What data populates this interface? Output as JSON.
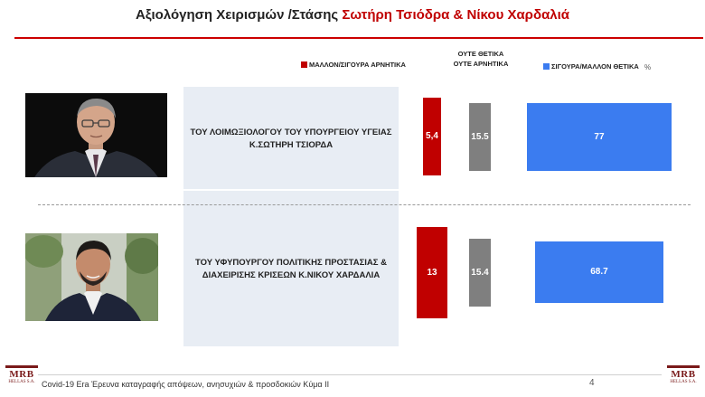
{
  "header": {
    "title_prefix": "Αξιολόγηση Χειρισμών /Στάσης ",
    "title_highlight": "Σωτήρη Τσιόδρα & Νίκου Χαρδαλιά"
  },
  "legend": {
    "negative": "ΜΑΛΛΟΝ/ΣΙΓΟΥΡΑ ΑΡΝΗΤΙΚΑ",
    "neutral_line1": "ΟΥΤΕ ΘΕΤΙΚΑ",
    "neutral_line2": "ΟΥΤΕ ΑΡΝΗΤΙΚΑ",
    "positive": "ΣΙΓΟΥΡΑ/ΜΑΛΛΟΝ ΘΕΤΙΚΑ",
    "unit": "%"
  },
  "rows": [
    {
      "label_line1": "ΤΟΥ ΛΟΙΜΩΞΙΟΛΟΓΟΥ ΤΟΥ ΥΠΟΥΡΓΕΙΟΥ ΥΓΕΙΑΣ",
      "label_line2": "Κ.ΣΩΤΗΡΗ ΤΣΙΟΡΔΑ"
    },
    {
      "label_line1": "ΤΟΥ ΥΦΥΠΟΥΡΓΟΥ ΠΟΛΙΤΙΚΗΣ ΠΡΟΣΤΑΣΙΑΣ &",
      "label_line2": "ΔΙΑΧΕΙΡΙΣΗΣ ΚΡΙΣΕΩΝ Κ.ΝΙΚΟΥ ΧΑΡΔΑΛΙΑ"
    }
  ],
  "chart_data": {
    "type": "bar",
    "categories": [
      "ΤΟΥ ΛΟΙΜΩΞΙΟΛΟΓΟΥ ΤΟΥ ΥΠΟΥΡΓΕΙΟΥ ΥΓΕΙΑΣ Κ.ΣΩΤΗΡΗ ΤΣΙΟΡΔΑ",
      "ΤΟΥ ΥΦΥΠΟΥΡΓΟΥ ΠΟΛΙΤΙΚΗΣ ΠΡΟΣΤΑΣΙΑΣ & ΔΙΑΧΕΙΡΙΣΗΣ ΚΡΙΣΕΩΝ Κ.ΝΙΚΟΥ ΧΑΡΔΑΛΙΑ"
    ],
    "series": [
      {
        "name": "ΜΑΛΛΟΝ/ΣΙΓΟΥΡΑ ΑΡΝΗΤΙΚΑ",
        "values": [
          5.4,
          13
        ],
        "labels": [
          "5,4",
          "13"
        ],
        "color": "#c00000"
      },
      {
        "name": "ΟΥΤΕ ΘΕΤΙΚΑ ΟΥΤΕ ΑΡΝΗΤΙΚΑ",
        "values": [
          15.5,
          15.4
        ],
        "labels": [
          "15.5",
          "15.4"
        ],
        "color": "#7f7f7f"
      },
      {
        "name": "ΣΙΓΟΥΡΑ/ΜΑΛΛΟΝ ΘΕΤΙΚΑ",
        "values": [
          77,
          68.7
        ],
        "labels": [
          "77",
          "68.7"
        ],
        "color": "#3b7cf0"
      }
    ],
    "unit": "%",
    "legend_position": "top"
  },
  "footer": {
    "text": "Covid-19 Era Έρευνα καταγραφής απόψεων, ανησυχιών & προσδοκιών Κύμα ΙΙ",
    "page": "4",
    "logo_main": "MRB",
    "logo_sub": "HELLAS S.A."
  }
}
